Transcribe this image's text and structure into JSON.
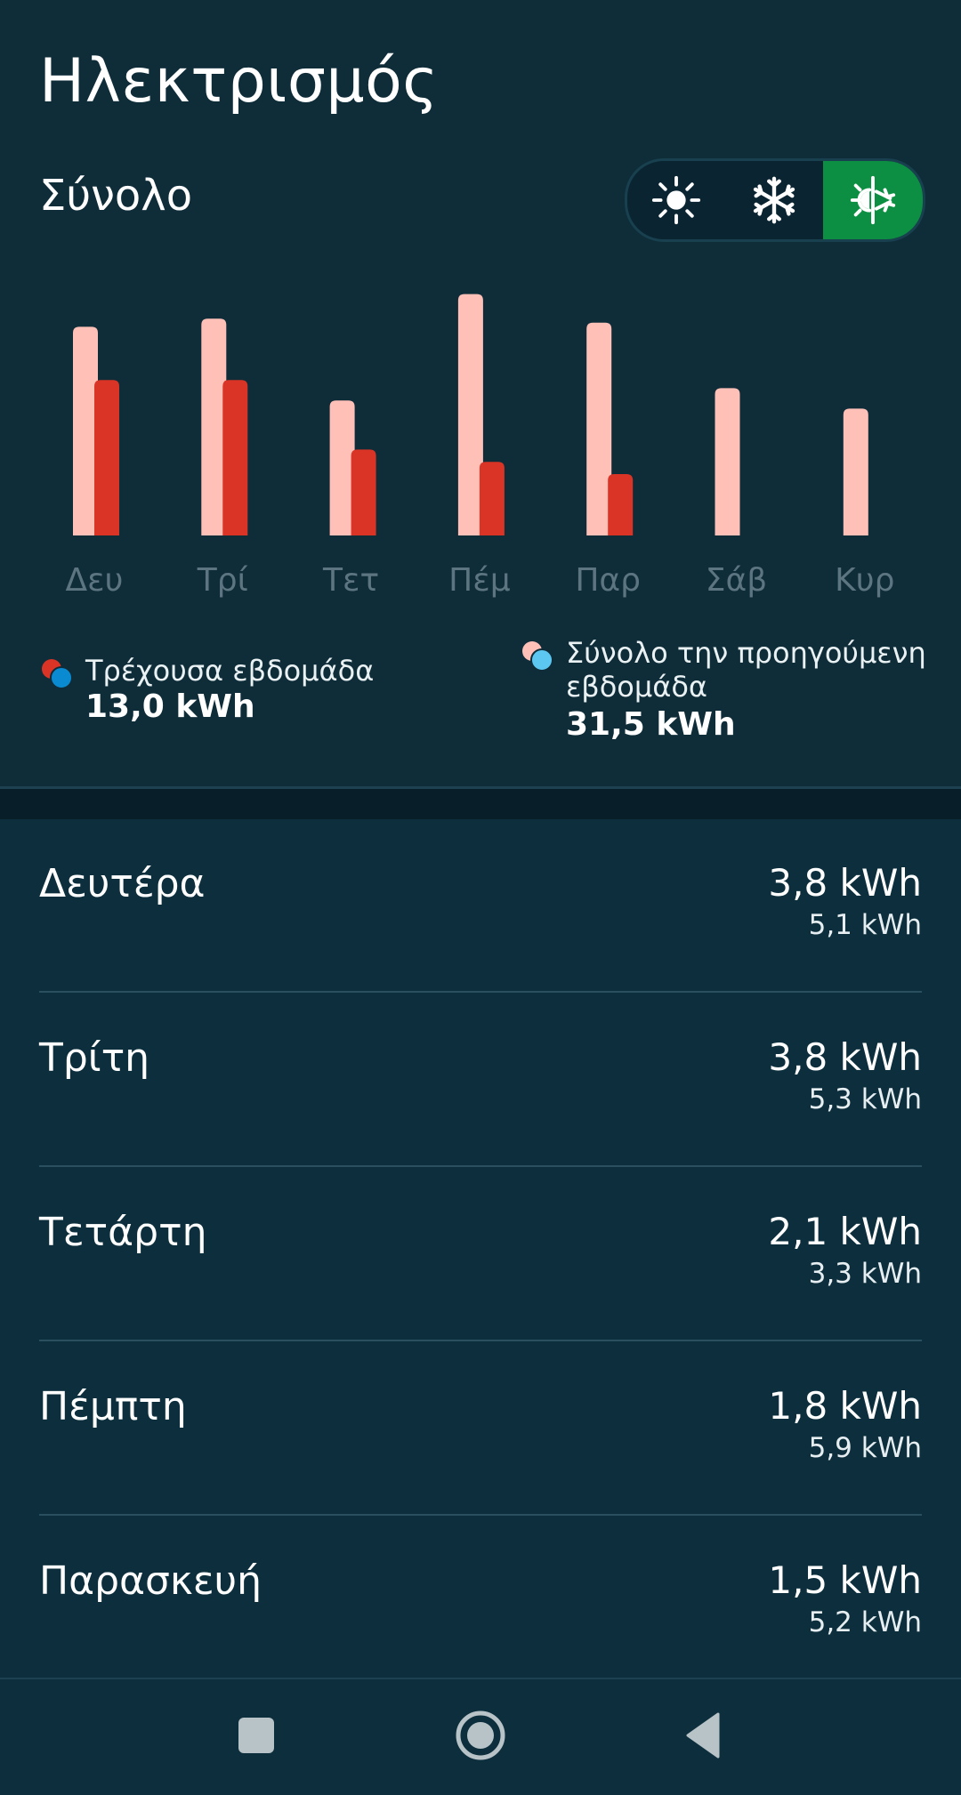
{
  "header": {
    "title": "Ηλεκτρισμός",
    "subtitle": "Σύνολο"
  },
  "mode_toggle": {
    "options": [
      {
        "icon": "sun-icon",
        "active": false
      },
      {
        "icon": "snowflake-icon",
        "active": false
      },
      {
        "icon": "sun-snowflake-icon",
        "active": true
      }
    ],
    "active_color": "#0d8f43"
  },
  "chart_data": {
    "type": "bar",
    "categories": [
      "Δευ",
      "Τρί",
      "Τετ",
      "Πέμ",
      "Παρ",
      "Σάβ",
      "Κυρ"
    ],
    "series": [
      {
        "name": "Σύνολο την προηγούμενη εβδομάδα",
        "values": [
          5.1,
          5.3,
          3.3,
          5.9,
          5.2,
          3.6,
          3.1
        ],
        "color": "#ffc0b8"
      },
      {
        "name": "Τρέχουσα εβδομάδα",
        "values": [
          3.8,
          3.8,
          2.1,
          1.8,
          1.5,
          null,
          null
        ],
        "color": "#d93425"
      }
    ],
    "ylim": [
      0,
      6
    ],
    "grid": false
  },
  "legend": {
    "current": {
      "label": "Τρέχουσα εβδομάδα",
      "value": "13,0 kWh"
    },
    "previous": {
      "label_line1": "Σύνολο την προηγούμενη",
      "label_line2": "εβδομάδα",
      "value": "31,5 kWh"
    }
  },
  "days": [
    {
      "name": "Δευτέρα",
      "current": "3,8 kWh",
      "previous": "5,1 kWh"
    },
    {
      "name": "Τρίτη",
      "current": "3,8 kWh",
      "previous": "5,3 kWh"
    },
    {
      "name": "Τετάρτη",
      "current": "2,1 kWh",
      "previous": "3,3 kWh"
    },
    {
      "name": "Πέμπτη",
      "current": "1,8 kWh",
      "previous": "5,9 kWh"
    },
    {
      "name": "Παρασκευή",
      "current": "1,5 kWh",
      "previous": "5,2 kWh"
    }
  ],
  "nav": {
    "buttons": [
      "recent-apps-icon",
      "home-icon",
      "back-icon"
    ]
  }
}
